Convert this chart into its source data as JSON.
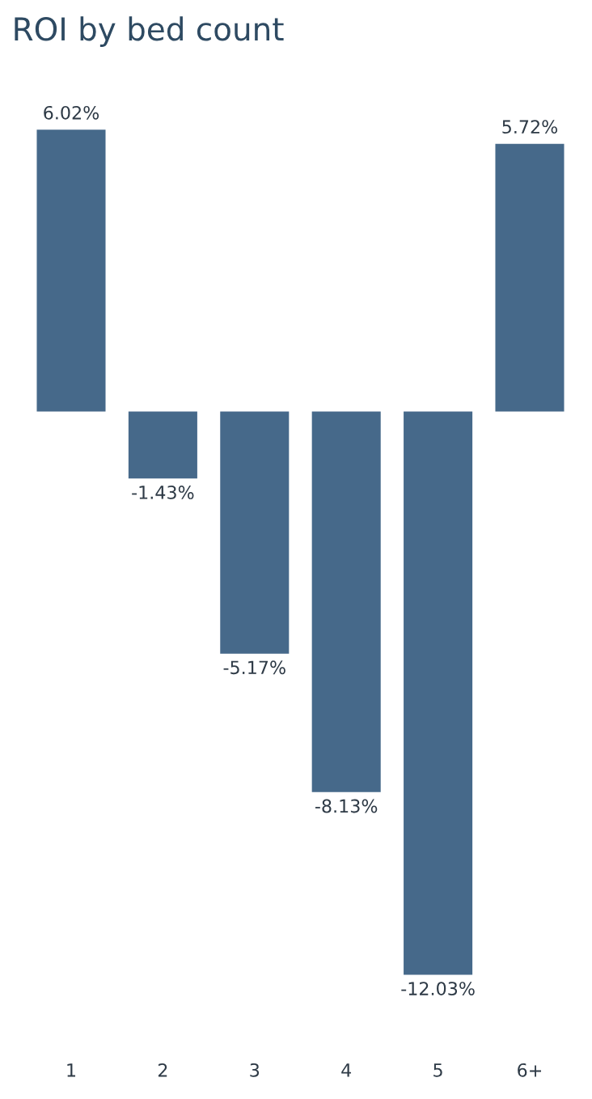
{
  "chart_data": {
    "type": "bar",
    "title": "ROI by bed count",
    "categories": [
      "1",
      "2",
      "3",
      "4",
      "5",
      "6+"
    ],
    "values": [
      6.02,
      -1.43,
      -5.17,
      -8.13,
      -12.03,
      5.72
    ],
    "value_labels": [
      "6.02%",
      "-1.43%",
      "-5.17%",
      "-8.13%",
      "-12.03%",
      "5.72%"
    ],
    "color": "#46698a",
    "grid": false,
    "legend": false,
    "tick_labels": "x"
  }
}
